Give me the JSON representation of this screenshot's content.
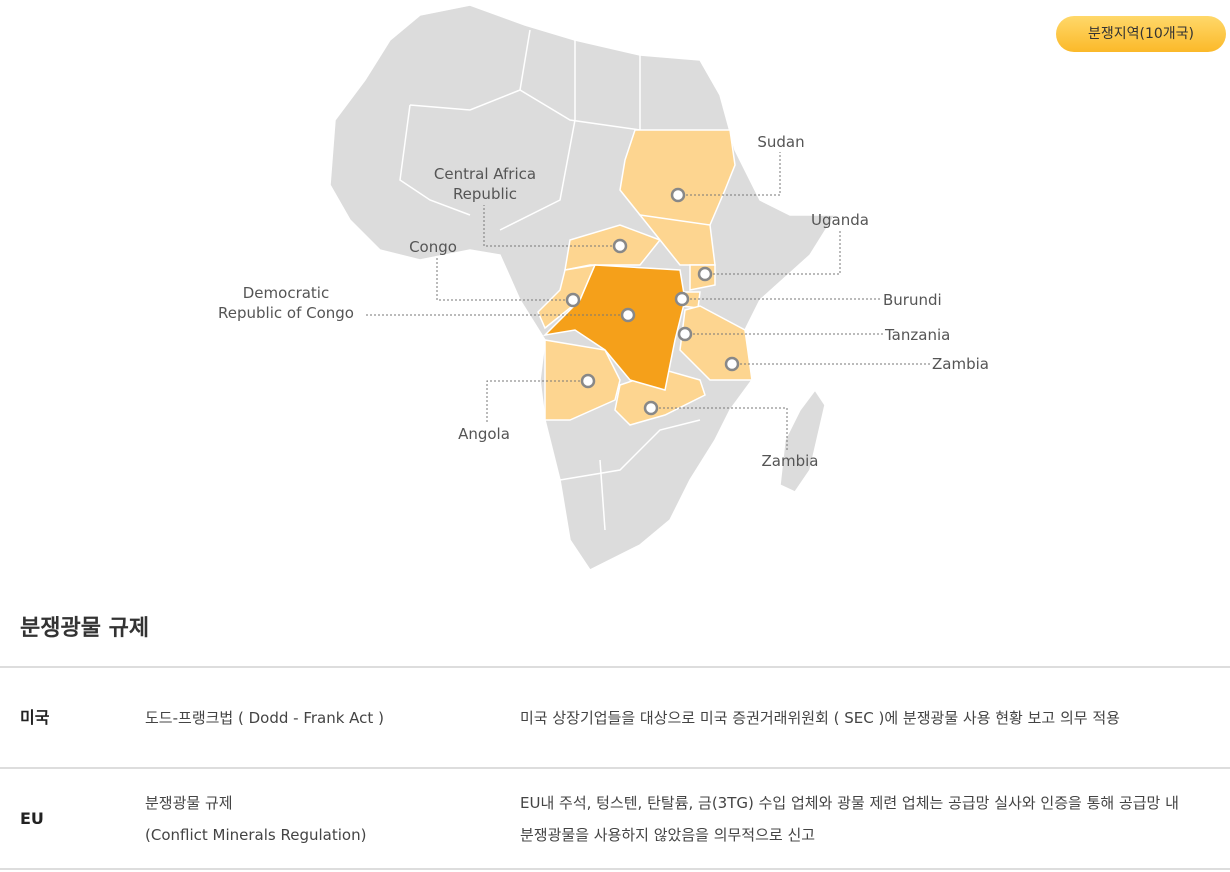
{
  "badge": "분쟁지역(10개국)",
  "map": {
    "labels": [
      {
        "name": "Sudan"
      },
      {
        "name": "Central Africa\nRepublic"
      },
      {
        "name": "Uganda"
      },
      {
        "name": "Congo"
      },
      {
        "name": "Burundi"
      },
      {
        "name": "Democratic\nRepublic of Congo"
      },
      {
        "name": "Tanzania"
      },
      {
        "name": "Zambia"
      },
      {
        "name": "Angola"
      },
      {
        "name": "Zambia"
      }
    ]
  },
  "section": {
    "title": "분쟁광물 규제"
  },
  "table": {
    "rows": [
      [
        [
          "미국"
        ],
        [
          "도드-프랭크법 ( Dodd - Frank Act )"
        ],
        [
          "미국 상장기업들을 대상으로 미국 증권거래위원회 ( SEC )에 분쟁광물 사용 현황 보고 의무 적용"
        ]
      ],
      [
        [
          "EU"
        ],
        [
          "분쟁광물 규제",
          "(Conflict Minerals Regulation)"
        ],
        [
          "EU내 주석, 텅스텐, 탄탈륨, 금(3TG) 수입 업체와 광물 제련 업체는 공급망 실사와 인증을 통해 공급망 내",
          "분쟁광물을 사용하지 않았음을 의무적으로 신고"
        ]
      ]
    ]
  }
}
